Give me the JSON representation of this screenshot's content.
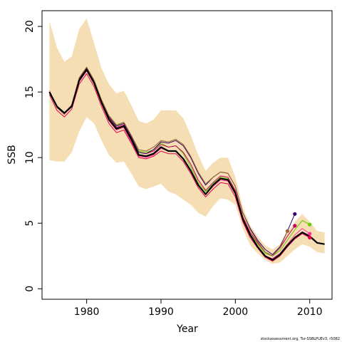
{
  "chart_data": {
    "type": "line",
    "xlabel": "Year",
    "ylabel": "SSB",
    "xlim": [
      1974,
      2013
    ],
    "ylim": [
      -0.8,
      21.2
    ],
    "x_ticks": [
      1980,
      1990,
      2000,
      2010
    ],
    "y_ticks": [
      0,
      5,
      10,
      15,
      20
    ],
    "credit": "stockassessment.org, Tur-SSBLPUEv3, r5082",
    "colors": {
      "band": "#f5deb3",
      "main": "#000000",
      "retro": [
        "#e6004d",
        "#ff3399",
        "#66cc00",
        "#cc0066",
        "#330066",
        "#996633"
      ]
    },
    "years": [
      1975,
      1976,
      1977,
      1978,
      1979,
      1980,
      1981,
      1982,
      1983,
      1984,
      1985,
      1986,
      1987,
      1988,
      1989,
      1990,
      1991,
      1992,
      1993,
      1994,
      1995,
      1996,
      1997,
      1998,
      1999,
      2000,
      2001,
      2002,
      2003,
      2004,
      2005,
      2006,
      2007,
      2008,
      2009,
      2010,
      2011,
      2012
    ],
    "band_upper": [
      20.4,
      18.4,
      17.3,
      17.7,
      19.8,
      20.6,
      18.7,
      16.8,
      15.6,
      14.9,
      15.1,
      14.0,
      12.8,
      12.6,
      12.9,
      13.6,
      13.6,
      13.6,
      13.0,
      11.7,
      10.2,
      9.0,
      9.6,
      10.0,
      10.0,
      8.5,
      6.2,
      4.8,
      4.0,
      3.3,
      3.0,
      3.4,
      4.3,
      5.1,
      5.7,
      5.1,
      4.4,
      4.3
    ],
    "band_lower": [
      9.8,
      9.7,
      9.7,
      10.4,
      12.0,
      13.1,
      12.6,
      11.3,
      10.2,
      9.6,
      9.7,
      8.8,
      7.8,
      7.6,
      7.8,
      8.0,
      7.4,
      7.2,
      6.8,
      6.4,
      5.8,
      5.5,
      6.3,
      6.9,
      6.8,
      6.4,
      4.6,
      3.3,
      2.7,
      2.2,
      1.9,
      2.0,
      2.5,
      3.0,
      3.4,
      3.2,
      2.8,
      2.7
    ],
    "series": [
      {
        "values": [
          15.0,
          13.9,
          13.4,
          13.9,
          15.9,
          16.7,
          15.7,
          14.2,
          12.9,
          12.2,
          12.4,
          11.4,
          10.2,
          10.1,
          10.3,
          10.8,
          10.5,
          10.5,
          9.9,
          9.0,
          7.9,
          7.2,
          7.9,
          8.4,
          8.3,
          7.3,
          5.3,
          4.1,
          3.2,
          2.5,
          2.2,
          2.6,
          3.3,
          3.9,
          4.3,
          4.0,
          3.5,
          3.4
        ]
      },
      {
        "values": [
          14.8,
          13.6,
          13.1,
          13.7,
          15.6,
          16.4,
          15.4,
          13.9,
          12.6,
          11.9,
          12.1,
          11.1,
          10.0,
          9.9,
          10.1,
          10.5,
          10.3,
          10.3,
          9.7,
          8.8,
          7.7,
          7.0,
          7.6,
          8.1,
          8.0,
          7.0,
          5.1,
          3.9,
          3.1,
          2.4,
          2.1,
          2.5,
          3.2,
          3.8,
          4.2,
          3.9
        ]
      },
      {
        "values": [
          15.1,
          13.8,
          13.3,
          13.9,
          15.8,
          16.6,
          15.6,
          14.1,
          12.8,
          12.1,
          12.3,
          11.2,
          10.1,
          10.0,
          10.2,
          10.7,
          10.5,
          10.5,
          9.9,
          9.0,
          7.9,
          7.2,
          7.8,
          8.3,
          8.2,
          7.2,
          5.3,
          4.1,
          3.2,
          2.5,
          2.3,
          2.7,
          3.4,
          4.1,
          4.6,
          4.2
        ]
      },
      {
        "values": [
          15.0,
          13.9,
          13.4,
          14.0,
          16.0,
          16.9,
          15.9,
          14.4,
          13.2,
          12.5,
          12.6,
          11.6,
          10.5,
          10.4,
          10.6,
          11.1,
          10.8,
          10.9,
          10.3,
          9.3,
          8.1,
          7.4,
          8.0,
          8.5,
          8.4,
          7.4,
          5.4,
          4.2,
          3.4,
          2.7,
          2.5,
          2.9,
          3.7,
          4.5,
          5.2,
          4.9
        ]
      },
      {
        "values": [
          15.0,
          13.9,
          13.4,
          14.0,
          16.0,
          16.8,
          15.8,
          14.3,
          13.0,
          12.3,
          12.5,
          11.5,
          10.4,
          10.3,
          10.5,
          11.0,
          10.8,
          10.9,
          10.4,
          9.5,
          8.3,
          7.5,
          8.1,
          8.6,
          8.5,
          7.5,
          5.5,
          4.3,
          3.5,
          2.8,
          2.5,
          3.1,
          4.0,
          4.8
        ]
      },
      {
        "values": [
          15.0,
          13.9,
          13.4,
          14.0,
          16.0,
          16.8,
          15.8,
          14.3,
          13.1,
          12.4,
          12.6,
          11.6,
          10.4,
          10.3,
          10.6,
          11.2,
          11.1,
          11.3,
          10.9,
          10.0,
          8.8,
          7.9,
          8.5,
          8.9,
          8.8,
          7.8,
          5.8,
          4.6,
          3.7,
          3.0,
          2.6,
          3.2,
          4.4,
          5.7
        ]
      },
      {
        "values": [
          14.9,
          13.8,
          13.3,
          14.0,
          16.1,
          16.9,
          15.9,
          14.4,
          13.2,
          12.5,
          12.7,
          11.7,
          10.6,
          10.5,
          10.8,
          11.3,
          11.2,
          11.4,
          11.0,
          10.1,
          8.9,
          8.0,
          8.5,
          8.9,
          8.8,
          7.8,
          5.8,
          4.5,
          3.6,
          2.8,
          2.5,
          3.1,
          4.4
        ]
      }
    ]
  }
}
